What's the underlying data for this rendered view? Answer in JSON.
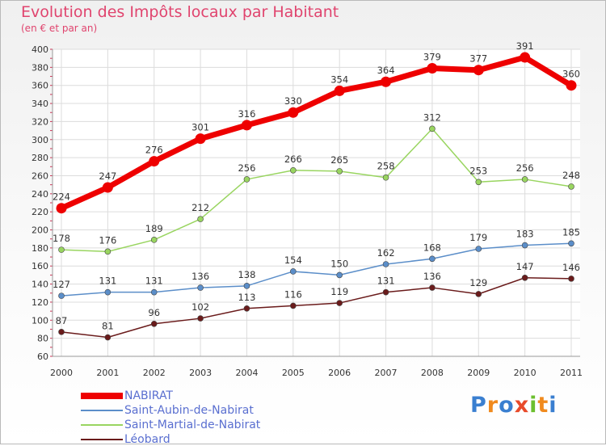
{
  "chart_data": {
    "type": "line",
    "title": "Evolution des Impôts locaux par Habitant",
    "subtitle": "(en € et par an)",
    "x": [
      "2000",
      "2001",
      "2002",
      "2003",
      "2004",
      "2005",
      "2006",
      "2007",
      "2008",
      "2009",
      "2010",
      "2011"
    ],
    "ylim": [
      60,
      400
    ],
    "yticks": [
      60,
      80,
      100,
      120,
      140,
      160,
      180,
      200,
      220,
      240,
      260,
      280,
      300,
      320,
      340,
      360,
      380,
      400
    ],
    "grid": true,
    "legend_position": "bottom-left",
    "series": [
      {
        "name": "NABIRAT",
        "color": "#ee0000",
        "values": [
          224,
          247,
          276,
          301,
          316,
          330,
          354,
          364,
          379,
          377,
          391,
          360
        ]
      },
      {
        "name": "Saint-Aubin-de-Nabirat",
        "color": "#5b8ec9",
        "values": [
          127,
          131,
          131,
          136,
          138,
          154,
          150,
          162,
          168,
          179,
          183,
          185
        ]
      },
      {
        "name": "Saint-Martial-de-Nabirat",
        "color": "#99d560",
        "values": [
          178,
          176,
          189,
          212,
          256,
          266,
          265,
          258,
          312,
          253,
          256,
          248
        ]
      },
      {
        "name": "Léobard",
        "color": "#6a1b1b",
        "values": [
          87,
          81,
          96,
          102,
          113,
          116,
          119,
          131,
          136,
          129,
          147,
          146
        ]
      }
    ]
  },
  "brand": {
    "letters": [
      "P",
      "r",
      "o",
      "x",
      "i",
      "t",
      "i"
    ],
    "colors": [
      "#3a7fd0",
      "#f08a1e",
      "#3a7fd0",
      "#e84a2a",
      "#6cbf2e",
      "#f08a1e",
      "#3a7fd0"
    ]
  }
}
